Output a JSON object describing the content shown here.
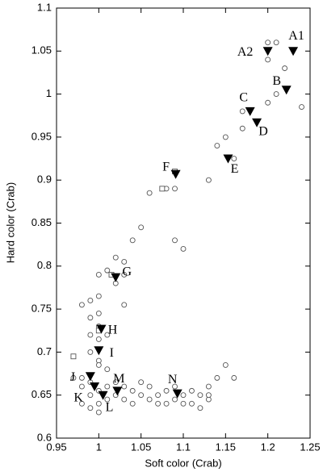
{
  "chart_data": {
    "type": "scatter",
    "xlabel": "Soft color (Crab)",
    "ylabel": "Hard color (Crab)",
    "xlim": [
      0.95,
      1.25
    ],
    "ylim": [
      0.6,
      1.1
    ],
    "xticks": [
      0.95,
      1,
      1.05,
      1.1,
      1.15,
      1.2,
      1.25
    ],
    "yticks": [
      0.6,
      0.65,
      0.7,
      0.75,
      0.8,
      0.85,
      0.9,
      0.95,
      1,
      1.05,
      1.1
    ],
    "series": [
      {
        "marker": "circle",
        "color": "#555555",
        "x": [
          1.2,
          1.21,
          1.2,
          1.21,
          1.22,
          1.24,
          1.2,
          1.17,
          1.17,
          1.16,
          1.15,
          1.14,
          1.13,
          1.09,
          1.06,
          1.08,
          1.09,
          1.1,
          1.04,
          1.05,
          1.02,
          1.03,
          1.01,
          1.02,
          1.03,
          1.0,
          0.98,
          0.99,
          1.0,
          0.99,
          1.0,
          1.03,
          1.0,
          0.99,
          1.0,
          1.01,
          0.99,
          1.0,
          1.01,
          1.0,
          0.97,
          0.98,
          0.98,
          0.99,
          0.99,
          1.0,
          1.0,
          1.01,
          1.01,
          1.02,
          1.02,
          1.03,
          1.03,
          1.04,
          1.05,
          1.06,
          1.06,
          1.07,
          1.08,
          1.08,
          1.09,
          1.1,
          1.1,
          1.11,
          1.11,
          1.12,
          1.12,
          1.13,
          1.13,
          1.14,
          1.15,
          1.16,
          1.13,
          0.98,
          0.99,
          1.0,
          1.04,
          1.05,
          1.07,
          1.09
        ],
        "y": [
          1.06,
          1.06,
          1.04,
          1.0,
          1.03,
          0.985,
          0.99,
          0.98,
          0.96,
          0.925,
          0.95,
          0.94,
          0.9,
          0.89,
          0.885,
          0.89,
          0.83,
          0.82,
          0.83,
          0.845,
          0.81,
          0.805,
          0.795,
          0.78,
          0.79,
          0.79,
          0.755,
          0.76,
          0.765,
          0.74,
          0.745,
          0.755,
          0.73,
          0.72,
          0.715,
          0.72,
          0.7,
          0.69,
          0.68,
          0.685,
          0.67,
          0.67,
          0.66,
          0.665,
          0.65,
          0.655,
          0.64,
          0.66,
          0.645,
          0.665,
          0.65,
          0.66,
          0.645,
          0.655,
          0.65,
          0.66,
          0.645,
          0.65,
          0.655,
          0.64,
          0.66,
          0.65,
          0.64,
          0.655,
          0.64,
          0.65,
          0.635,
          0.645,
          0.66,
          0.67,
          0.685,
          0.67,
          0.65,
          0.64,
          0.635,
          0.63,
          0.64,
          0.665,
          0.64,
          0.645
        ]
      },
      {
        "marker": "square",
        "color": "#555555",
        "x": [
          0.97,
          1.0,
          1.015,
          1.09,
          1.075
        ],
        "y": [
          0.695,
          0.725,
          0.79,
          0.91,
          0.89
        ]
      },
      {
        "marker": "triangle",
        "color": "#000000",
        "x": [
          1.23,
          1.2,
          1.222,
          1.179,
          1.187,
          1.153,
          1.091,
          1.02,
          1.003,
          1.0,
          0.99,
          0.995,
          1.005,
          1.022,
          1.093
        ],
        "y": [
          1.05,
          1.05,
          1.005,
          0.98,
          0.967,
          0.925,
          0.907,
          0.787,
          0.727,
          0.702,
          0.672,
          0.66,
          0.65,
          0.655,
          0.652
        ],
        "labels": [
          "A1",
          "A2",
          "B",
          "C",
          "D",
          "E",
          "F",
          "G",
          "H",
          "I",
          "J",
          "K",
          "L",
          "M",
          "N"
        ]
      }
    ]
  }
}
